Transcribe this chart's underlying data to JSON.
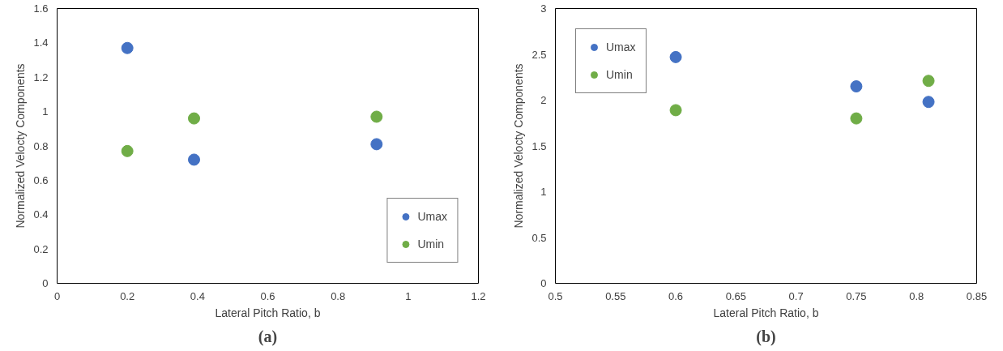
{
  "chart_data": [
    {
      "type": "scatter",
      "xlabel": "Lateral Pitch Ratio, b",
      "ylabel": "Normalized Velocty Components",
      "annotations": [
        "(a)"
      ],
      "marker": "circle",
      "legend": "bottom right",
      "grid": false,
      "xlim": [
        0,
        1.2
      ],
      "xticks": [
        0,
        0.2,
        0.4,
        0.6,
        0.8,
        1,
        1.2
      ],
      "ylim": [
        0,
        1.6
      ],
      "yticks": [
        0,
        0.2,
        0.4,
        0.6,
        0.8,
        1,
        1.2,
        1.4,
        1.6
      ],
      "series": [
        {
          "name": "Umax",
          "color": "#4472c4",
          "x": [
            0.2,
            0.39,
            0.91
          ],
          "values": [
            1.37,
            0.72,
            0.81
          ]
        },
        {
          "name": "Umin",
          "color": "#70ad47",
          "x": [
            0.2,
            0.39,
            0.91
          ],
          "values": [
            0.77,
            0.96,
            0.97
          ]
        }
      ]
    },
    {
      "type": "scatter",
      "xlabel": "Lateral Pitch Ratio, b",
      "ylabel": "Normalized Velocty Components",
      "annotations": [
        "(b)"
      ],
      "marker": "circle",
      "legend": "top left",
      "grid": false,
      "xlim": [
        0.5,
        0.85
      ],
      "xticks": [
        0.5,
        0.55,
        0.6,
        0.65,
        0.7,
        0.75,
        0.8,
        0.85
      ],
      "ylim": [
        0,
        3
      ],
      "yticks": [
        0,
        0.5,
        1,
        1.5,
        2,
        2.5,
        3
      ],
      "series": [
        {
          "name": "Umax",
          "color": "#4472c4",
          "x": [
            0.6,
            0.75,
            0.81
          ],
          "values": [
            2.47,
            2.15,
            1.98
          ]
        },
        {
          "name": "Umin",
          "color": "#70ad47",
          "x": [
            0.6,
            0.75,
            0.81
          ],
          "values": [
            1.89,
            1.8,
            2.21
          ]
        }
      ]
    }
  ]
}
